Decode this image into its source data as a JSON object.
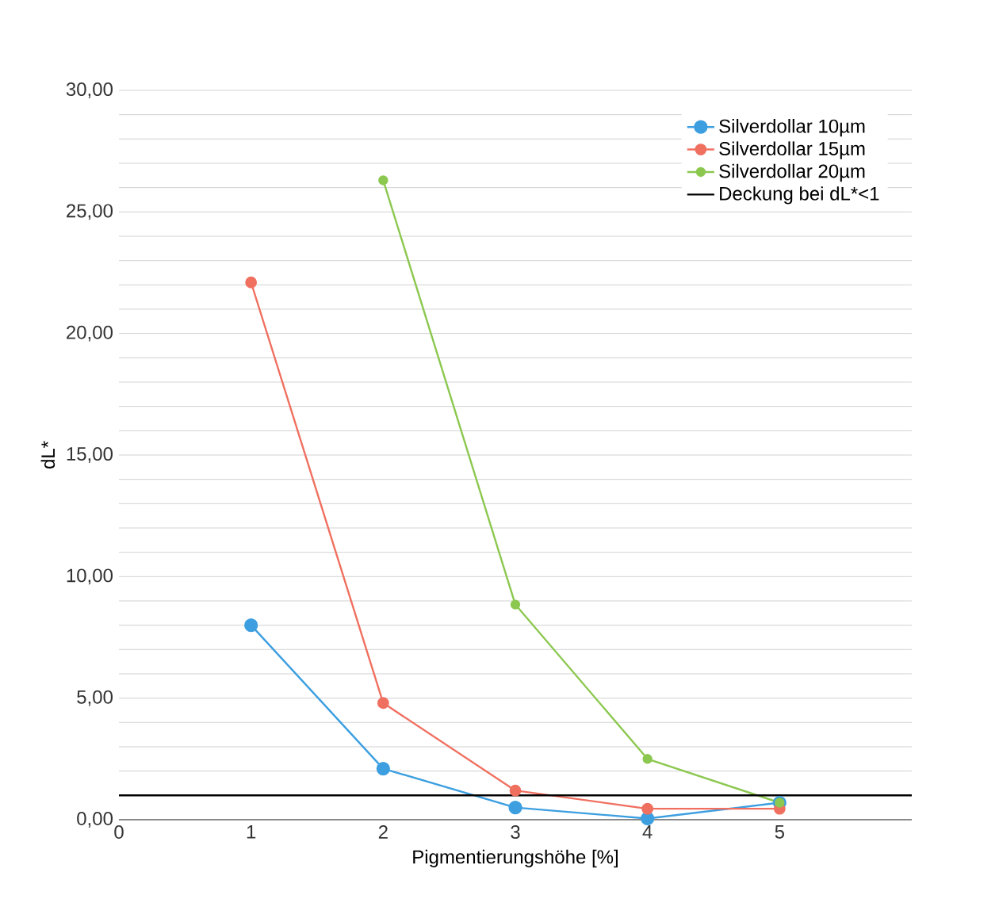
{
  "chart_data": {
    "type": "line",
    "xlabel": "Pigmentierungshöhe [%]",
    "ylabel": "dL*",
    "x": [
      1,
      2,
      3,
      4,
      5
    ],
    "series": [
      {
        "name": "Silverdollar 10µm",
        "color": "#3d9fe0",
        "values": [
          8.0,
          2.1,
          0.5,
          0.05,
          0.7
        ]
      },
      {
        "name": "Silverdollar 15µm",
        "color": "#f07060",
        "values": [
          22.1,
          4.8,
          1.2,
          0.45,
          0.45
        ]
      },
      {
        "name": "Silverdollar 20µm",
        "color": "#8cc850",
        "values": [
          null,
          26.3,
          8.85,
          2.5,
          0.7
        ]
      }
    ],
    "ref_lines": [
      {
        "axis": "y",
        "value": 1,
        "label": "Deckung bei dL*<1",
        "color": "#000000"
      }
    ],
    "xlim": [
      0,
      6
    ],
    "xticks": [
      0,
      1,
      2,
      3,
      4,
      5
    ],
    "ylim": [
      0,
      30
    ],
    "yticks": [
      {
        "value": 0,
        "label": "0,00"
      },
      {
        "value": 1,
        "label": null
      },
      {
        "value": 2,
        "label": null
      },
      {
        "value": 3,
        "label": null
      },
      {
        "value": 4,
        "label": null
      },
      {
        "value": 5,
        "label": "5,00"
      },
      {
        "value": 6,
        "label": null
      },
      {
        "value": 7,
        "label": null
      },
      {
        "value": 8,
        "label": null
      },
      {
        "value": 9,
        "label": null
      },
      {
        "value": 10,
        "label": "10,00"
      },
      {
        "value": 11,
        "label": null
      },
      {
        "value": 12,
        "label": null
      },
      {
        "value": 13,
        "label": null
      },
      {
        "value": 14,
        "label": null
      },
      {
        "value": 15,
        "label": "15,00"
      },
      {
        "value": 16,
        "label": null
      },
      {
        "value": 17,
        "label": null
      },
      {
        "value": 18,
        "label": null
      },
      {
        "value": 19,
        "label": null
      },
      {
        "value": 20,
        "label": "20,00"
      },
      {
        "value": 21,
        "label": null
      },
      {
        "value": 22,
        "label": null
      },
      {
        "value": 23,
        "label": null
      },
      {
        "value": 24,
        "label": null
      },
      {
        "value": 25,
        "label": "25,00"
      },
      {
        "value": 26,
        "label": null
      },
      {
        "value": 27,
        "label": null
      },
      {
        "value": 28,
        "label": null
      },
      {
        "value": 29,
        "label": null
      },
      {
        "value": 30,
        "label": "30,00"
      }
    ],
    "grid": "y",
    "legend": "top right",
    "marker": "circle",
    "line_style": "solid"
  }
}
